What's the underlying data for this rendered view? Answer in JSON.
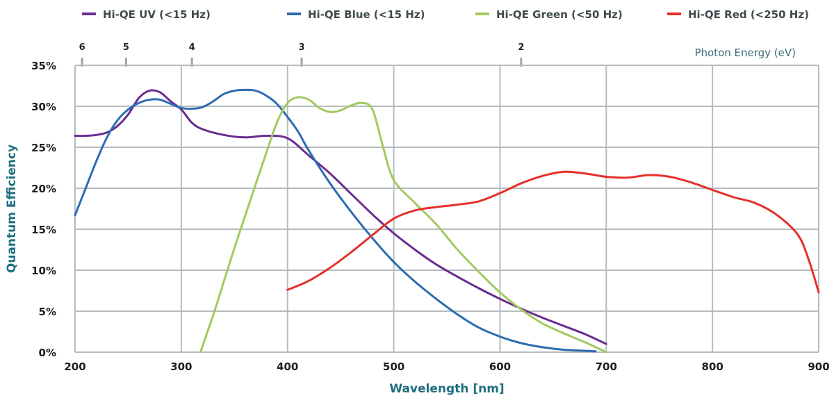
{
  "chart_data": {
    "type": "line",
    "xlabel": "Wavelength [nm]",
    "ylabel": "Quantum Efficiency",
    "xlim": [
      200,
      900
    ],
    "ylim": [
      0,
      35
    ],
    "x_ticks": [
      200,
      300,
      400,
      500,
      600,
      700,
      800,
      900
    ],
    "y_ticks": [
      0,
      5,
      10,
      15,
      20,
      25,
      30,
      35
    ],
    "y_tick_labels": [
      "0%",
      "5%",
      "10%",
      "15%",
      "20%",
      "25%",
      "30%",
      "35%"
    ],
    "grid": true,
    "legend_position": "top",
    "secondary_axis": {
      "title": "Photon Energy (eV)",
      "ticks": [
        {
          "label": "6",
          "wavelength": 206.6
        },
        {
          "label": "5",
          "wavelength": 248.0
        },
        {
          "label": "4",
          "wavelength": 310.0
        },
        {
          "label": "3",
          "wavelength": 413.3
        },
        {
          "label": "2",
          "wavelength": 619.9
        }
      ]
    },
    "colors": {
      "grid": "#b4bcbe",
      "axis_title": "#1f6f7f",
      "energy_title": "#3a6a78",
      "energy_tick": "#9aa4a8"
    },
    "series": [
      {
        "name": "Hi-QE UV (<15 Hz)",
        "color": "#6a2c91",
        "points": [
          [
            200,
            26.4
          ],
          [
            210,
            26.4
          ],
          [
            220,
            26.5
          ],
          [
            230,
            26.8
          ],
          [
            240,
            27.6
          ],
          [
            250,
            29.0
          ],
          [
            260,
            31.0
          ],
          [
            270,
            31.9
          ],
          [
            280,
            31.7
          ],
          [
            290,
            30.6
          ],
          [
            300,
            29.6
          ],
          [
            310,
            28.0
          ],
          [
            320,
            27.2
          ],
          [
            340,
            26.5
          ],
          [
            360,
            26.2
          ],
          [
            380,
            26.4
          ],
          [
            400,
            26.1
          ],
          [
            420,
            24.0
          ],
          [
            440,
            21.8
          ],
          [
            460,
            19.3
          ],
          [
            480,
            16.8
          ],
          [
            500,
            14.5
          ],
          [
            520,
            12.5
          ],
          [
            540,
            10.7
          ],
          [
            560,
            9.2
          ],
          [
            580,
            7.8
          ],
          [
            600,
            6.5
          ],
          [
            620,
            5.3
          ],
          [
            640,
            4.2
          ],
          [
            660,
            3.2
          ],
          [
            680,
            2.2
          ],
          [
            700,
            1.0
          ]
        ]
      },
      {
        "name": "Hi-QE Blue (<15 Hz)",
        "color": "#2d6cb0",
        "points": [
          [
            200,
            16.7
          ],
          [
            210,
            20.0
          ],
          [
            220,
            23.3
          ],
          [
            230,
            26.2
          ],
          [
            240,
            28.3
          ],
          [
            250,
            29.6
          ],
          [
            260,
            30.4
          ],
          [
            270,
            30.8
          ],
          [
            280,
            30.8
          ],
          [
            290,
            30.3
          ],
          [
            300,
            29.8
          ],
          [
            310,
            29.7
          ],
          [
            320,
            29.9
          ],
          [
            330,
            30.6
          ],
          [
            340,
            31.5
          ],
          [
            350,
            31.9
          ],
          [
            360,
            32.0
          ],
          [
            370,
            31.9
          ],
          [
            380,
            31.3
          ],
          [
            390,
            30.3
          ],
          [
            400,
            28.7
          ],
          [
            410,
            26.9
          ],
          [
            420,
            24.6
          ],
          [
            440,
            20.6
          ],
          [
            460,
            17.1
          ],
          [
            480,
            13.9
          ],
          [
            500,
            11.0
          ],
          [
            520,
            8.6
          ],
          [
            540,
            6.5
          ],
          [
            560,
            4.6
          ],
          [
            580,
            3.0
          ],
          [
            600,
            1.9
          ],
          [
            620,
            1.1
          ],
          [
            640,
            0.6
          ],
          [
            660,
            0.3
          ],
          [
            690,
            0.1
          ]
        ]
      },
      {
        "name": "Hi-QE Green (<50 Hz)",
        "color": "#a3c960",
        "points": [
          [
            318,
            0
          ],
          [
            330,
            4.5
          ],
          [
            340,
            8.6
          ],
          [
            350,
            12.7
          ],
          [
            360,
            16.6
          ],
          [
            370,
            20.5
          ],
          [
            380,
            24.3
          ],
          [
            390,
            28.0
          ],
          [
            400,
            30.4
          ],
          [
            410,
            31.1
          ],
          [
            420,
            30.8
          ],
          [
            430,
            29.8
          ],
          [
            440,
            29.3
          ],
          [
            450,
            29.5
          ],
          [
            460,
            30.1
          ],
          [
            470,
            30.4
          ],
          [
            480,
            29.6
          ],
          [
            490,
            25.0
          ],
          [
            500,
            21.0
          ],
          [
            520,
            18.2
          ],
          [
            540,
            15.6
          ],
          [
            560,
            12.5
          ],
          [
            580,
            9.8
          ],
          [
            600,
            7.3
          ],
          [
            620,
            5.2
          ],
          [
            640,
            3.5
          ],
          [
            660,
            2.3
          ],
          [
            680,
            1.2
          ],
          [
            700,
            0
          ]
        ]
      },
      {
        "name": "Hi-QE Red (<250 Hz)",
        "color": "#e4302a",
        "points": [
          [
            400,
            7.6
          ],
          [
            420,
            8.7
          ],
          [
            440,
            10.3
          ],
          [
            460,
            12.2
          ],
          [
            480,
            14.3
          ],
          [
            500,
            16.3
          ],
          [
            520,
            17.3
          ],
          [
            540,
            17.7
          ],
          [
            560,
            18.0
          ],
          [
            580,
            18.4
          ],
          [
            600,
            19.4
          ],
          [
            620,
            20.6
          ],
          [
            640,
            21.5
          ],
          [
            660,
            22.0
          ],
          [
            680,
            21.8
          ],
          [
            700,
            21.4
          ],
          [
            720,
            21.3
          ],
          [
            740,
            21.6
          ],
          [
            760,
            21.4
          ],
          [
            780,
            20.7
          ],
          [
            800,
            19.8
          ],
          [
            820,
            18.9
          ],
          [
            840,
            18.2
          ],
          [
            860,
            16.8
          ],
          [
            880,
            14.4
          ],
          [
            890,
            11.5
          ],
          [
            900,
            7.3
          ]
        ]
      }
    ]
  }
}
